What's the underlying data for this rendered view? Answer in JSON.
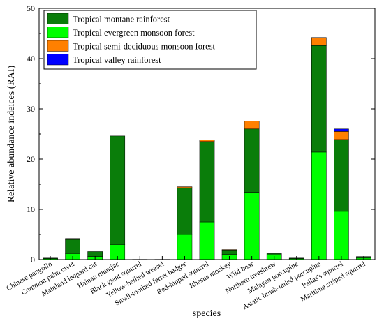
{
  "chart_data": {
    "type": "bar",
    "stacked": true,
    "xlabel": "species",
    "ylabel": "Relative abundance indeices (RAI)",
    "ylim": [
      0,
      50
    ],
    "yticks": [
      0,
      10,
      20,
      30,
      40,
      50
    ],
    "legend_position": "top-left",
    "categories": [
      "Chinese pangolin",
      "Common palm civet",
      "Mainland leopard cat",
      "Hainan muntjac",
      "Black giant squirrel",
      "Yellow-bellied weasel",
      "Small-toothed ferret badger",
      "Red-hipped squirrel",
      "Rhesus monkey",
      "Wild boar",
      "Northern treeshrew",
      "Malayan porcupine",
      "Asiatic brush-tailed porcupine",
      "Pallas's squirrel",
      "Maritime striped squirrel"
    ],
    "series": [
      {
        "name": "Tropical evergreen monsoon forest",
        "color": "#00ff00",
        "values": [
          0.2,
          1.2,
          0.6,
          3.0,
          0.0,
          0.0,
          5.0,
          7.5,
          1.0,
          13.4,
          0.9,
          0.2,
          21.4,
          9.6,
          0.3
        ]
      },
      {
        "name": "Tropical montane rainforest",
        "color": "#0a7d0a",
        "values": [
          0.1,
          2.8,
          1.0,
          21.6,
          0.05,
          0.05,
          9.3,
          16.0,
          0.9,
          12.6,
          0.3,
          0.1,
          21.2,
          14.3,
          0.3
        ]
      },
      {
        "name": "Tropical semi-deciduous monsoon forest",
        "color": "#ff8000",
        "values": [
          0.0,
          0.2,
          0.0,
          0.0,
          0.0,
          0.0,
          0.2,
          0.3,
          0.1,
          1.6,
          0.0,
          0.0,
          1.6,
          1.6,
          0.0
        ]
      },
      {
        "name": "Tropical valley rainforest",
        "color": "#0000ff",
        "values": [
          0.0,
          0.0,
          0.0,
          0.0,
          0.0,
          0.0,
          0.0,
          0.0,
          0.0,
          0.0,
          0.0,
          0.0,
          0.0,
          0.5,
          0.0
        ]
      }
    ],
    "legend_order": [
      "Tropical montane rainforest",
      "Tropical evergreen monsoon forest",
      "Tropical semi-deciduous monsoon forest",
      "Tropical valley rainforest"
    ]
  }
}
